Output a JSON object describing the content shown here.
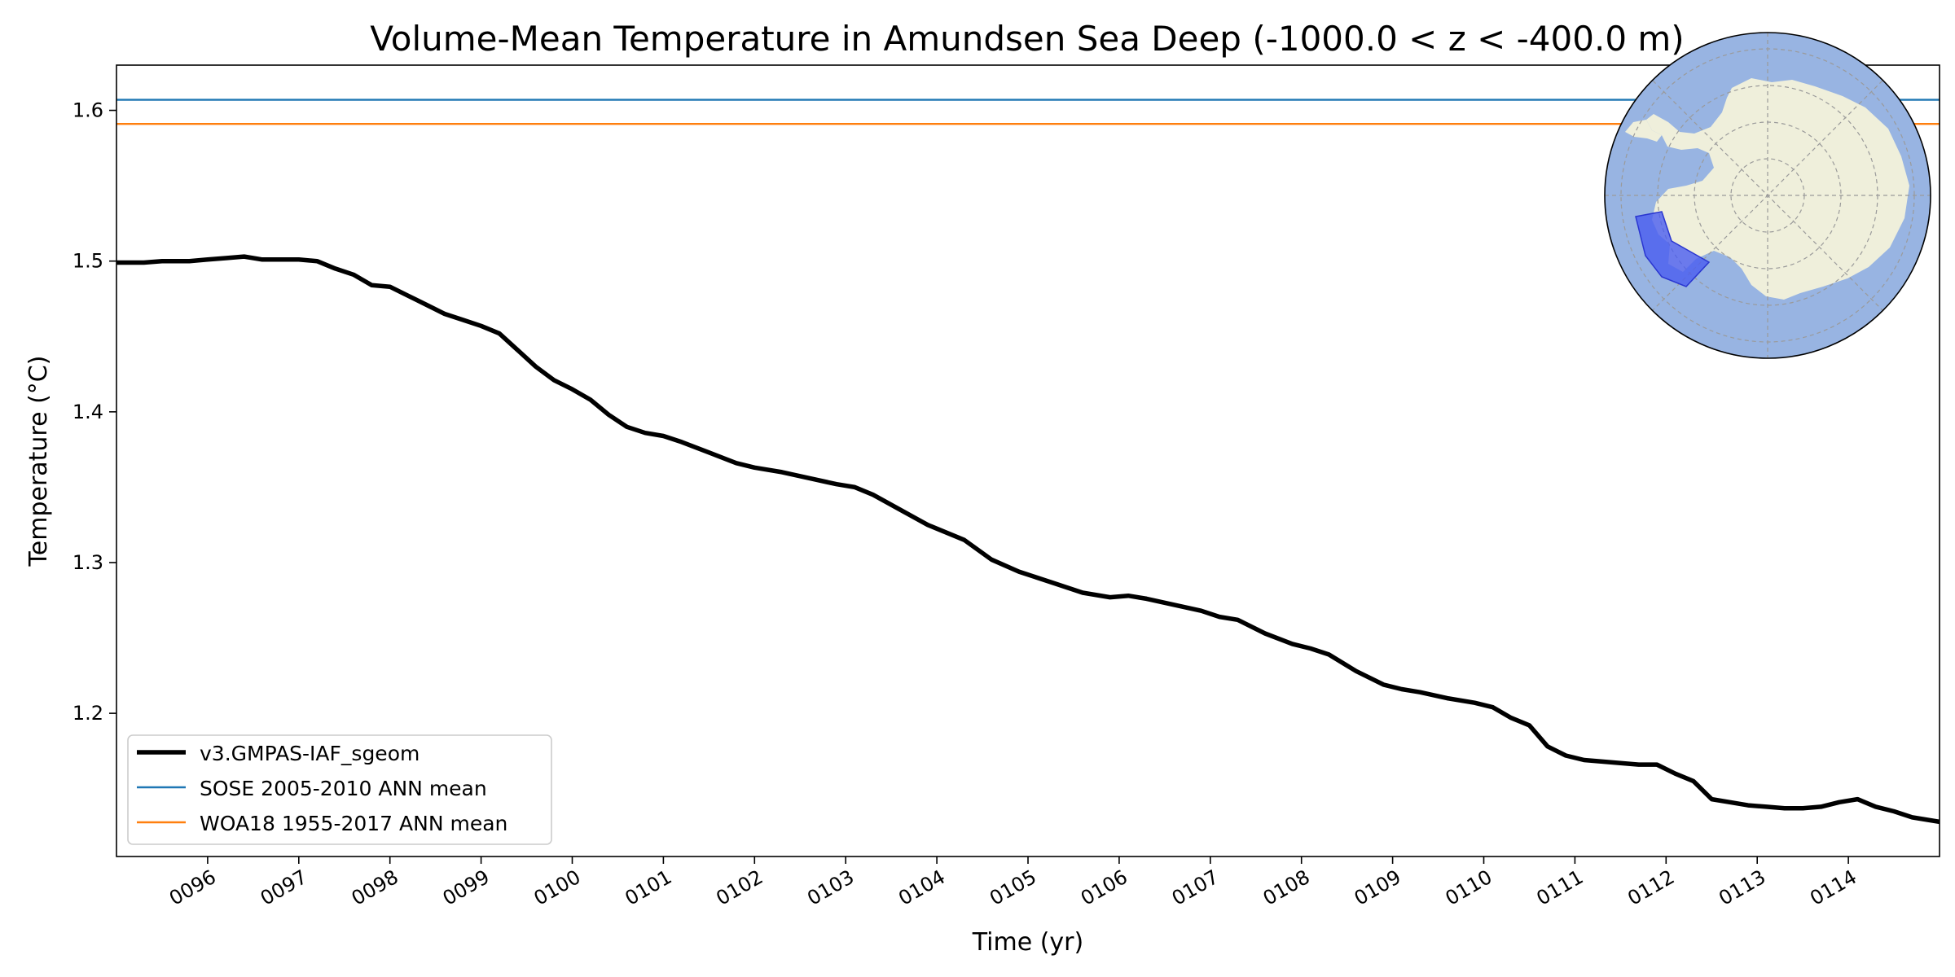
{
  "chart_data": {
    "type": "line",
    "title": "Volume-Mean Temperature in Amundsen Sea Deep (-1000.0 < z < -400.0 m)",
    "xlabel": "Time (yr)",
    "ylabel": "Temperature (°C)",
    "xlim": [
      95.0,
      115.0
    ],
    "ylim": [
      1.105,
      1.63
    ],
    "grid": false,
    "legend_location": "lower-left",
    "xticks": [
      {
        "value": 96,
        "label": "0096"
      },
      {
        "value": 97,
        "label": "0097"
      },
      {
        "value": 98,
        "label": "0098"
      },
      {
        "value": 99,
        "label": "0099"
      },
      {
        "value": 100,
        "label": "0100"
      },
      {
        "value": 101,
        "label": "0101"
      },
      {
        "value": 102,
        "label": "0102"
      },
      {
        "value": 103,
        "label": "0103"
      },
      {
        "value": 104,
        "label": "0104"
      },
      {
        "value": 105,
        "label": "0105"
      },
      {
        "value": 106,
        "label": "0106"
      },
      {
        "value": 107,
        "label": "0107"
      },
      {
        "value": 108,
        "label": "0108"
      },
      {
        "value": 109,
        "label": "0109"
      },
      {
        "value": 110,
        "label": "0110"
      },
      {
        "value": 111,
        "label": "0111"
      },
      {
        "value": 112,
        "label": "0112"
      },
      {
        "value": 113,
        "label": "0113"
      },
      {
        "value": 114,
        "label": "0114"
      }
    ],
    "yticks": [
      {
        "value": 1.2,
        "label": "1.2"
      },
      {
        "value": 1.3,
        "label": "1.3"
      },
      {
        "value": 1.4,
        "label": "1.4"
      },
      {
        "value": 1.5,
        "label": "1.5"
      },
      {
        "value": 1.6,
        "label": "1.6"
      }
    ],
    "series": [
      {
        "name": "v3.GMPAS-IAF_sgeom",
        "color": "#000000",
        "style": "thick",
        "x": [
          95.0,
          95.3,
          95.5,
          95.8,
          96.0,
          96.2,
          96.4,
          96.6,
          96.8,
          97.0,
          97.2,
          97.4,
          97.6,
          97.8,
          98.0,
          98.2,
          98.4,
          98.6,
          98.8,
          99.0,
          99.2,
          99.4,
          99.6,
          99.8,
          100.0,
          100.2,
          100.4,
          100.6,
          100.8,
          101.0,
          101.2,
          101.5,
          101.8,
          102.0,
          102.3,
          102.6,
          102.9,
          103.1,
          103.3,
          103.6,
          103.9,
          104.1,
          104.3,
          104.6,
          104.9,
          105.1,
          105.3,
          105.6,
          105.9,
          106.1,
          106.3,
          106.6,
          106.9,
          107.1,
          107.3,
          107.6,
          107.9,
          108.1,
          108.3,
          108.6,
          108.9,
          109.1,
          109.3,
          109.6,
          109.9,
          110.1,
          110.3,
          110.5,
          110.7,
          110.9,
          111.1,
          111.3,
          111.5,
          111.7,
          111.9,
          112.1,
          112.3,
          112.5,
          112.7,
          112.9,
          113.1,
          113.3,
          113.5,
          113.7,
          113.9,
          114.1,
          114.3,
          114.5,
          114.7,
          115.0
        ],
        "y": [
          1.499,
          1.499,
          1.5,
          1.5,
          1.501,
          1.502,
          1.503,
          1.501,
          1.501,
          1.501,
          1.5,
          1.495,
          1.491,
          1.484,
          1.483,
          1.477,
          1.471,
          1.465,
          1.461,
          1.457,
          1.452,
          1.441,
          1.43,
          1.421,
          1.415,
          1.408,
          1.398,
          1.39,
          1.386,
          1.384,
          1.38,
          1.373,
          1.366,
          1.363,
          1.36,
          1.356,
          1.352,
          1.35,
          1.345,
          1.335,
          1.325,
          1.32,
          1.315,
          1.302,
          1.294,
          1.29,
          1.286,
          1.28,
          1.277,
          1.278,
          1.276,
          1.272,
          1.268,
          1.264,
          1.262,
          1.253,
          1.246,
          1.243,
          1.239,
          1.228,
          1.219,
          1.216,
          1.214,
          1.21,
          1.207,
          1.204,
          1.197,
          1.192,
          1.178,
          1.172,
          1.169,
          1.168,
          1.167,
          1.166,
          1.166,
          1.16,
          1.155,
          1.143,
          1.141,
          1.139,
          1.138,
          1.137,
          1.137,
          1.138,
          1.141,
          1.143,
          1.138,
          1.135,
          1.131,
          1.128
        ]
      },
      {
        "name": "SOSE 2005-2010 ANN mean",
        "color": "#1f77b4",
        "style": "thin",
        "x": [
          95.0,
          115.0
        ],
        "y": [
          1.607,
          1.607
        ]
      },
      {
        "name": "WOA18 1955-2017 ANN mean",
        "color": "#ff7f0e",
        "style": "thin",
        "x": [
          95.0,
          115.0
        ],
        "y": [
          1.591,
          1.591
        ]
      }
    ],
    "inset_map": {
      "type": "south-polar-stereographic",
      "ocean_color": "#98b4e2",
      "land_color": "#efefdb",
      "region_color": "#4a5cf0",
      "region_name": "Amundsen Sea"
    }
  }
}
